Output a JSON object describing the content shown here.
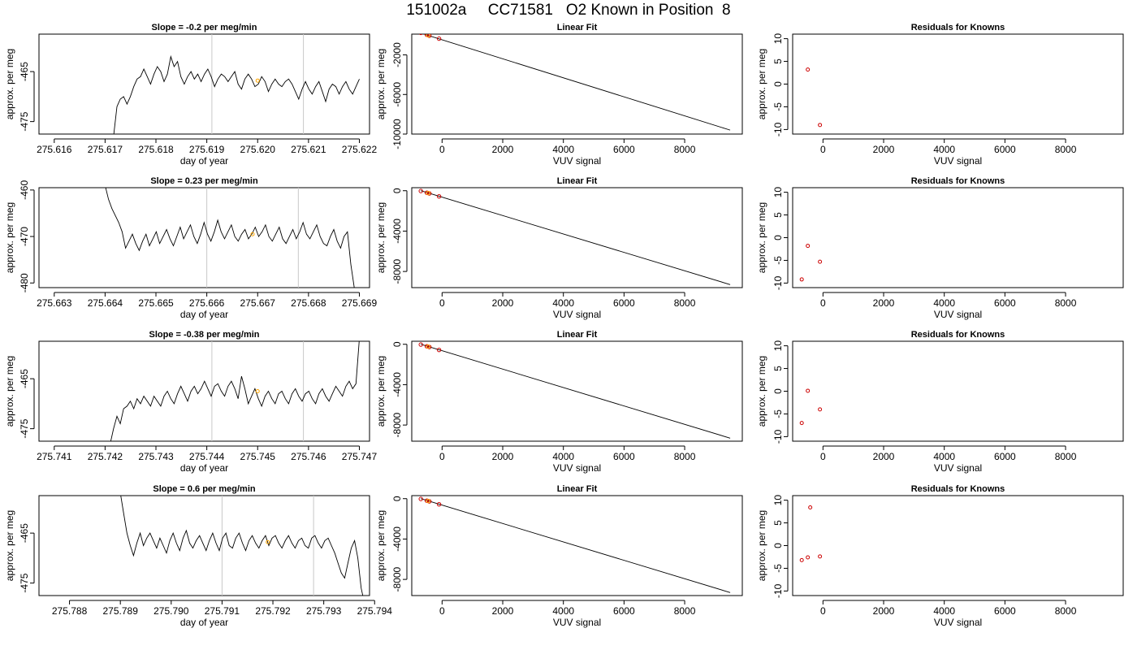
{
  "title": "151002a     CC71581   O2 Known in Position  8",
  "colors": {
    "line": "#000000",
    "marker_orange": "#ffa500",
    "residual_red": "#cc0000",
    "vline": "#c8c8c8"
  },
  "chart_data": [
    {
      "type": "line",
      "row": 0,
      "col": 0,
      "title": "Slope =  -0.2  per meg/min",
      "xlabel": "day of year",
      "ylabel": "approx. per meg",
      "xlim": [
        275.6157,
        275.6222
      ],
      "ylim": [
        -477.5,
        -457.5
      ],
      "xticks": [
        275.616,
        275.617,
        275.618,
        275.619,
        275.62,
        275.621,
        275.622
      ],
      "xtick_labels": [
        "275.616",
        "275.617",
        "275.618",
        "275.619",
        "275.620",
        "275.621",
        "275.622"
      ],
      "yticks": [
        -465,
        -475
      ],
      "ytick_labels": [
        "-465",
        "-475"
      ],
      "vlines": [
        275.6191,
        275.6209
      ],
      "series_start": 275.6171,
      "series_end": 275.622,
      "series_y": [
        -490,
        -478,
        -472,
        -470.5,
        -470,
        -471.5,
        -470,
        -468,
        -466.5,
        -466,
        -464.5,
        -466,
        -467.5,
        -465.5,
        -464,
        -465,
        -467,
        -465.5,
        -462,
        -464,
        -463,
        -466,
        -467.5,
        -466,
        -465,
        -466.5,
        -465.5,
        -467,
        -465.5,
        -464.5,
        -466,
        -468,
        -466.5,
        -465.5,
        -466,
        -467,
        -466,
        -465,
        -467.5,
        -468.5,
        -466.5,
        -465.5,
        -466.5,
        -468,
        -467.5,
        -466,
        -467,
        -469,
        -467.5,
        -466.5,
        -467.5,
        -468,
        -467,
        -466.5,
        -467.5,
        -469,
        -470.5,
        -468.5,
        -467,
        -468.5,
        -469.5,
        -468,
        -467,
        -469,
        -471,
        -468.5,
        -467.5,
        -468,
        -469.5,
        -468,
        -467,
        -468.5,
        -469.5,
        -468,
        -466.5
      ],
      "markers": [
        {
          "x": 275.62,
          "y": -466.8
        }
      ]
    },
    {
      "type": "scatter_line",
      "row": 0,
      "col": 1,
      "title": "Linear Fit",
      "xlabel": "VUV signal",
      "ylabel": "approx. per meg",
      "xlim": [
        -1000,
        9900
      ],
      "ylim": [
        -10000,
        100
      ],
      "xticks": [
        0,
        2000,
        4000,
        6000,
        8000
      ],
      "xtick_labels": [
        "0",
        "2000",
        "4000",
        "6000",
        "8000"
      ],
      "yticks": [
        -2000,
        -6000,
        -10000
      ],
      "ytick_labels": [
        "-2000",
        "-6000",
        "-10000"
      ],
      "fit_line": [
        [
          -700,
          200
        ],
        [
          9500,
          -9600
        ]
      ],
      "points": [
        [
          -700,
          230
        ],
        [
          -500,
          30
        ],
        [
          -420,
          -60
        ],
        [
          -100,
          -360
        ]
      ],
      "markers": [
        {
          "x": -460,
          "y": -20
        }
      ]
    },
    {
      "type": "scatter",
      "row": 0,
      "col": 2,
      "title": "Residuals for Knowns",
      "xlabel": "VUV signal",
      "ylabel": "approx. per meg",
      "xlim": [
        -1000,
        9900
      ],
      "ylim": [
        -11,
        11
      ],
      "xticks": [
        0,
        2000,
        4000,
        6000,
        8000
      ],
      "xtick_labels": [
        "0",
        "2000",
        "4000",
        "6000",
        "8000"
      ],
      "yticks": [
        10,
        5,
        0,
        -5,
        -10
      ],
      "ytick_labels": [
        "10",
        "5",
        "0",
        "-5",
        "-10"
      ],
      "points": [
        [
          -500,
          3.2
        ],
        [
          -100,
          -9
        ]
      ]
    },
    {
      "type": "line",
      "row": 1,
      "col": 0,
      "title": "Slope =  0.23  per meg/min",
      "xlabel": "day of year",
      "ylabel": "approx. per meg",
      "xlim": [
        275.6627,
        275.6692
      ],
      "ylim": [
        -481,
        -459.5
      ],
      "xticks": [
        275.663,
        275.664,
        275.665,
        275.666,
        275.667,
        275.668,
        275.669
      ],
      "xtick_labels": [
        "275.663",
        "275.664",
        "275.665",
        "275.666",
        "275.667",
        "275.668",
        "275.669"
      ],
      "yticks": [
        -460,
        -470,
        -480
      ],
      "ytick_labels": [
        "-460",
        "-470",
        "-480"
      ],
      "vlines": [
        275.666,
        275.6678
      ],
      "series_start": 275.664,
      "series_end": 275.6689,
      "series_y": [
        -459,
        -462,
        -464,
        -465.5,
        -467,
        -469,
        -472.5,
        -471,
        -469.5,
        -471.5,
        -473,
        -471,
        -469.5,
        -472,
        -470.5,
        -469,
        -471.5,
        -470,
        -468.5,
        -470.5,
        -472,
        -470,
        -468,
        -470.5,
        -469,
        -467.5,
        -470,
        -471.5,
        -469.5,
        -467,
        -469.5,
        -471,
        -469,
        -466.5,
        -469,
        -470.5,
        -469,
        -467.5,
        -470,
        -471,
        -469.5,
        -468.5,
        -470.5,
        -469.5,
        -468,
        -470,
        -469,
        -467.5,
        -470,
        -471,
        -469.5,
        -468,
        -470.5,
        -471.5,
        -470,
        -468.5,
        -470.5,
        -469,
        -467,
        -469.5,
        -470.5,
        -469,
        -467.5,
        -470,
        -471.5,
        -472,
        -470,
        -468.5,
        -471,
        -472.5,
        -470,
        -469,
        -476,
        -481
      ],
      "markers": [
        {
          "x": 275.6669,
          "y": -469.5
        }
      ]
    },
    {
      "type": "scatter_line",
      "row": 1,
      "col": 1,
      "title": "Linear Fit",
      "xlabel": "VUV signal",
      "ylabel": "approx. per meg",
      "xlim": [
        -1000,
        9900
      ],
      "ylim": [
        -9600,
        300
      ],
      "xticks": [
        0,
        2000,
        4000,
        6000,
        8000
      ],
      "xtick_labels": [
        "0",
        "2000",
        "4000",
        "6000",
        "8000"
      ],
      "yticks": [
        0,
        -4000,
        -8000
      ],
      "ytick_labels": [
        "0",
        "-4000",
        "-8000"
      ],
      "fit_line": [
        [
          -700,
          0
        ],
        [
          9500,
          -9300
        ]
      ],
      "points": [
        [
          -700,
          -30
        ],
        [
          -500,
          -200
        ],
        [
          -420,
          -270
        ],
        [
          -100,
          -560
        ]
      ],
      "markers": [
        {
          "x": -460,
          "y": -230
        }
      ]
    },
    {
      "type": "scatter",
      "row": 1,
      "col": 2,
      "title": "Residuals for Knowns",
      "xlabel": "VUV signal",
      "ylabel": "approx. per meg",
      "xlim": [
        -1000,
        9900
      ],
      "ylim": [
        -11,
        11
      ],
      "xticks": [
        0,
        2000,
        4000,
        6000,
        8000
      ],
      "xtick_labels": [
        "0",
        "2000",
        "4000",
        "6000",
        "8000"
      ],
      "yticks": [
        10,
        5,
        0,
        -5,
        -10
      ],
      "ytick_labels": [
        "10",
        "5",
        "0",
        "-5",
        "-10"
      ],
      "points": [
        [
          -700,
          -9.2
        ],
        [
          -500,
          -1.8
        ],
        [
          -100,
          -5.3
        ]
      ]
    },
    {
      "type": "line",
      "row": 2,
      "col": 0,
      "title": "Slope =  -0.38  per meg/min",
      "xlabel": "day of year",
      "ylabel": "approx. per meg",
      "xlim": [
        275.7407,
        275.7472
      ],
      "ylim": [
        -477.5,
        -457.5
      ],
      "xticks": [
        275.741,
        275.742,
        275.743,
        275.744,
        275.745,
        275.746,
        275.747
      ],
      "xtick_labels": [
        "275.741",
        "275.742",
        "275.743",
        "275.744",
        "275.745",
        "275.746",
        "275.747"
      ],
      "yticks": [
        -465,
        -475
      ],
      "ytick_labels": [
        "-465",
        "-475"
      ],
      "vlines": [
        275.7441,
        275.7459
      ],
      "series_start": 275.7421,
      "series_end": 275.747,
      "series_y": [
        -478,
        -475,
        -472.5,
        -474,
        -471,
        -470.5,
        -469.5,
        -471,
        -469,
        -470,
        -468.5,
        -469.5,
        -470.5,
        -468.5,
        -469.5,
        -470.5,
        -468.5,
        -467.5,
        -469,
        -470,
        -468,
        -466.5,
        -468,
        -469.5,
        -467.5,
        -466.5,
        -468,
        -467,
        -465.5,
        -467,
        -468.5,
        -466.5,
        -466,
        -467.5,
        -468.5,
        -466.5,
        -465.5,
        -467,
        -469,
        -464.5,
        -467,
        -470,
        -468.5,
        -467,
        -469,
        -470.5,
        -468.5,
        -467.5,
        -469,
        -470,
        -468,
        -467.5,
        -469,
        -470,
        -468,
        -467,
        -468.5,
        -469.5,
        -468,
        -467.5,
        -469,
        -470,
        -468,
        -467,
        -468.5,
        -469.5,
        -468,
        -466.5,
        -467.5,
        -468.5,
        -466.5,
        -465.5,
        -467,
        -466,
        -457
      ],
      "markers": [
        {
          "x": 275.745,
          "y": -467.5
        }
      ]
    },
    {
      "type": "scatter_line",
      "row": 2,
      "col": 1,
      "title": "Linear Fit",
      "xlabel": "VUV signal",
      "ylabel": "approx. per meg",
      "xlim": [
        -1000,
        9900
      ],
      "ylim": [
        -9600,
        300
      ],
      "xticks": [
        0,
        2000,
        4000,
        6000,
        8000
      ],
      "xtick_labels": [
        "0",
        "2000",
        "4000",
        "6000",
        "8000"
      ],
      "yticks": [
        0,
        -4000,
        -8000
      ],
      "ytick_labels": [
        "0",
        "-4000",
        "-8000"
      ],
      "fit_line": [
        [
          -700,
          0
        ],
        [
          9500,
          -9300
        ]
      ],
      "points": [
        [
          -700,
          -30
        ],
        [
          -500,
          -200
        ],
        [
          -420,
          -270
        ],
        [
          -100,
          -560
        ]
      ],
      "markers": [
        {
          "x": -460,
          "y": -230
        }
      ]
    },
    {
      "type": "scatter",
      "row": 2,
      "col": 2,
      "title": "Residuals for Knowns",
      "xlabel": "VUV signal",
      "ylabel": "approx. per meg",
      "xlim": [
        -1000,
        9900
      ],
      "ylim": [
        -11,
        11
      ],
      "xticks": [
        0,
        2000,
        4000,
        6000,
        8000
      ],
      "xtick_labels": [
        "0",
        "2000",
        "4000",
        "6000",
        "8000"
      ],
      "yticks": [
        10,
        5,
        0,
        -5,
        -10
      ],
      "ytick_labels": [
        "10",
        "5",
        "0",
        "-5",
        "-10"
      ],
      "points": [
        [
          -700,
          -7
        ],
        [
          -500,
          0.1
        ],
        [
          -100,
          -4
        ]
      ]
    },
    {
      "type": "line",
      "row": 3,
      "col": 0,
      "title": "Slope =  0.6  per meg/min",
      "xlabel": "day of year",
      "ylabel": "approx. per meg",
      "xlim": [
        275.7874,
        275.7939
      ],
      "ylim": [
        -477.5,
        -457.5
      ],
      "xticks": [
        275.788,
        275.789,
        275.79,
        275.791,
        275.792,
        275.793,
        275.794
      ],
      "xtick_labels": [
        "275.788",
        "275.789",
        "275.790",
        "275.791",
        "275.792",
        "275.793",
        "275.794"
      ],
      "yticks": [
        -465,
        -475
      ],
      "ytick_labels": [
        "-465",
        "-475"
      ],
      "vlines": [
        275.791,
        275.7928
      ],
      "series_start": 275.789,
      "series_end": 275.7938,
      "series_y": [
        -457,
        -461,
        -465,
        -467.5,
        -469.5,
        -467,
        -465,
        -467.5,
        -466,
        -465,
        -466.5,
        -468,
        -466,
        -467.5,
        -469,
        -466.5,
        -465,
        -467,
        -468.5,
        -466,
        -464.5,
        -467,
        -468,
        -466.5,
        -465.5,
        -467,
        -468.5,
        -466.5,
        -465,
        -467,
        -468.5,
        -466,
        -465,
        -467.5,
        -468,
        -466,
        -465,
        -467,
        -468.5,
        -466.5,
        -465.5,
        -467,
        -468,
        -466.5,
        -465.5,
        -467.5,
        -466,
        -465.5,
        -467,
        -468,
        -466.5,
        -465.5,
        -467,
        -468,
        -466.5,
        -466,
        -467.5,
        -468,
        -466,
        -465.5,
        -467,
        -468,
        -466.5,
        -466,
        -467.5,
        -469,
        -471,
        -473,
        -474,
        -471,
        -468,
        -466.5,
        -470,
        -476,
        -479
      ],
      "markers": [
        {
          "x": 275.7919,
          "y": -466.8
        }
      ]
    },
    {
      "type": "scatter_line",
      "row": 3,
      "col": 1,
      "title": "Linear Fit",
      "xlabel": "VUV signal",
      "ylabel": "approx. per meg",
      "xlim": [
        -1000,
        9900
      ],
      "ylim": [
        -9600,
        300
      ],
      "xticks": [
        0,
        2000,
        4000,
        6000,
        8000
      ],
      "xtick_labels": [
        "0",
        "2000",
        "4000",
        "6000",
        "8000"
      ],
      "yticks": [
        0,
        -4000,
        -8000
      ],
      "ytick_labels": [
        "0",
        "-4000",
        "-8000"
      ],
      "fit_line": [
        [
          -700,
          0
        ],
        [
          9500,
          -9300
        ]
      ],
      "points": [
        [
          -700,
          -30
        ],
        [
          -500,
          -200
        ],
        [
          -420,
          -270
        ],
        [
          -100,
          -560
        ]
      ],
      "markers": [
        {
          "x": -460,
          "y": -230
        }
      ]
    },
    {
      "type": "scatter",
      "row": 3,
      "col": 2,
      "title": "Residuals for Knowns",
      "xlabel": "VUV signal",
      "ylabel": "approx. per meg",
      "xlim": [
        -1000,
        9900
      ],
      "ylim": [
        -11,
        11
      ],
      "xticks": [
        0,
        2000,
        4000,
        6000,
        8000
      ],
      "xtick_labels": [
        "0",
        "2000",
        "4000",
        "6000",
        "8000"
      ],
      "yticks": [
        10,
        5,
        0,
        -5,
        -10
      ],
      "ytick_labels": [
        "10",
        "5",
        "0",
        "-5",
        "-10"
      ],
      "points": [
        [
          -700,
          -3.2
        ],
        [
          -500,
          -2.6
        ],
        [
          -420,
          8.4
        ],
        [
          -100,
          -2.4
        ]
      ]
    }
  ]
}
